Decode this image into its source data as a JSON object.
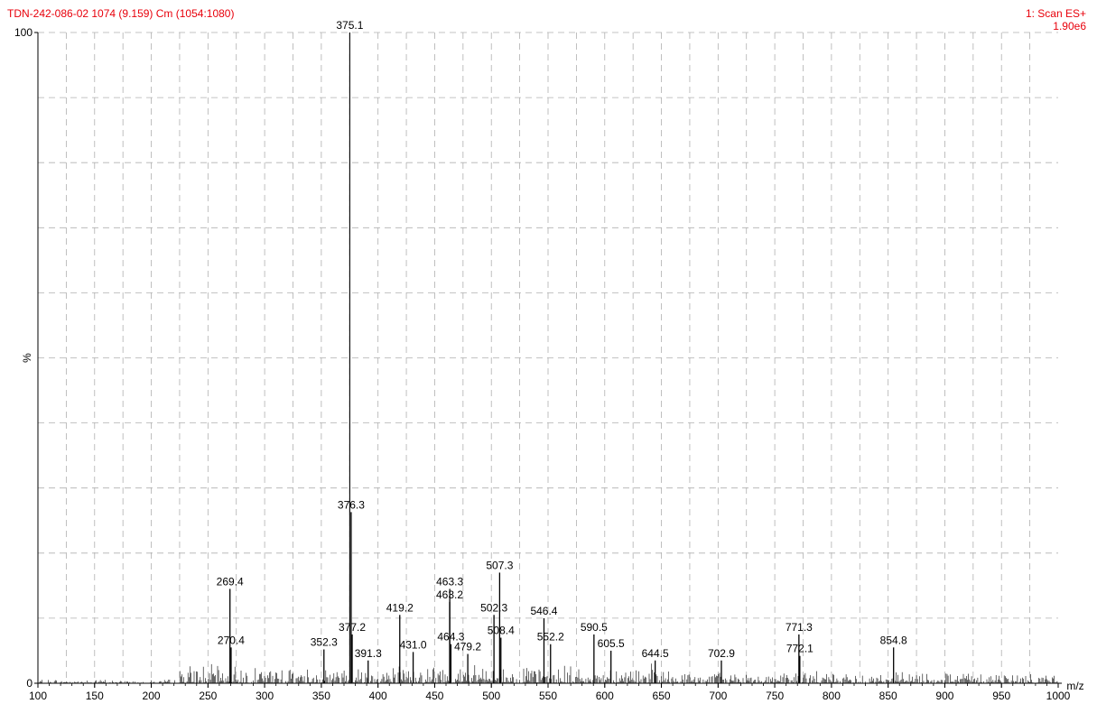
{
  "header": {
    "sample": "TDN-242-086-02 1074 (9.159) Cm (1054:1080)",
    "scan_mode": "1: Scan ES+",
    "base_intensity": "1.90e6"
  },
  "chart_data": {
    "type": "line",
    "title": "TDN-242-086-02 1074 (9.159) Cm (1054:1080)",
    "xlabel": "m/z",
    "ylabel": "%",
    "xlim": [
      100,
      1000
    ],
    "ylim": [
      0,
      100
    ],
    "x_ticks": [
      100,
      150,
      200,
      250,
      300,
      350,
      400,
      450,
      500,
      550,
      600,
      650,
      700,
      750,
      800,
      850,
      900,
      950,
      1000
    ],
    "y_tick_labels": [
      "0",
      "100"
    ],
    "grid": true,
    "line_color": "#000000",
    "text_color": "#e8000b",
    "peaks": [
      {
        "mz": 269.4,
        "intensity": 14.5,
        "label": "269.4"
      },
      {
        "mz": 270.4,
        "intensity": 5.5,
        "label": "270.4"
      },
      {
        "mz": 352.3,
        "intensity": 5.2,
        "label": "352.3"
      },
      {
        "mz": 375.1,
        "intensity": 100,
        "label": "375.1"
      },
      {
        "mz": 376.3,
        "intensity": 26.3,
        "label": "376.3"
      },
      {
        "mz": 377.2,
        "intensity": 7.5,
        "label": "377.2"
      },
      {
        "mz": 391.3,
        "intensity": 3.5,
        "label": "391.3"
      },
      {
        "mz": 419.2,
        "intensity": 10.5,
        "label": "419.2"
      },
      {
        "mz": 431.0,
        "intensity": 4.8,
        "label": "431.0"
      },
      {
        "mz": 463.2,
        "intensity": 12.5,
        "label": "463.2"
      },
      {
        "mz": 463.3,
        "intensity": 14.5,
        "label": "463.3"
      },
      {
        "mz": 464.3,
        "intensity": 6.0,
        "label": "464.3"
      },
      {
        "mz": 479.2,
        "intensity": 4.5,
        "label": "479.2"
      },
      {
        "mz": 502.3,
        "intensity": 10.5,
        "label": "502.3"
      },
      {
        "mz": 507.3,
        "intensity": 17.0,
        "label": "507.3"
      },
      {
        "mz": 508.4,
        "intensity": 7.0,
        "label": "508.4"
      },
      {
        "mz": 546.4,
        "intensity": 10.0,
        "label": "546.4"
      },
      {
        "mz": 552.2,
        "intensity": 6.0,
        "label": "552.2"
      },
      {
        "mz": 590.5,
        "intensity": 7.5,
        "label": "590.5"
      },
      {
        "mz": 605.5,
        "intensity": 5.0,
        "label": "605.5"
      },
      {
        "mz": 644.5,
        "intensity": 3.5,
        "label": "644.5"
      },
      {
        "mz": 702.9,
        "intensity": 3.5,
        "label": "702.9"
      },
      {
        "mz": 771.3,
        "intensity": 7.5,
        "label": "771.3"
      },
      {
        "mz": 772.1,
        "intensity": 4.2,
        "label": "772.1"
      },
      {
        "mz": 854.8,
        "intensity": 5.5,
        "label": "854.8"
      }
    ]
  }
}
